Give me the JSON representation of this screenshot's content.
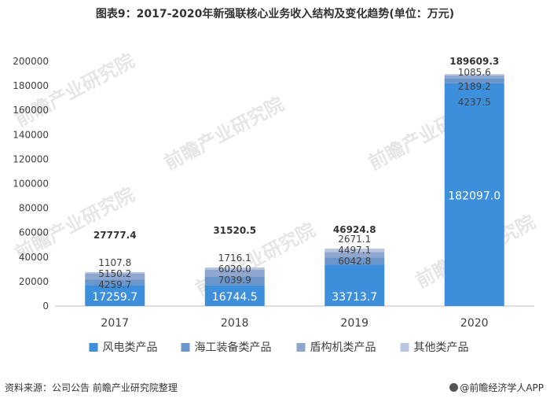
{
  "title": "图表9：2017-2020年新强联核心业务收入结构及变化趋势(单位：万元)",
  "source": "资料来源：公司公告 前瞻产业研究院整理",
  "brand": "@前瞻经济学人APP",
  "watermark": "前瞻产业研究院",
  "colors": {
    "series": [
      "#3e8fdb",
      "#6b96cc",
      "#8fa7cf",
      "#b9c6e2"
    ],
    "axis": "#bfbfbf",
    "text": "#404040"
  },
  "chart_data": {
    "type": "bar",
    "stacked": true,
    "categories": [
      "2017",
      "2018",
      "2019",
      "2020"
    ],
    "series": [
      {
        "name": "风电类产品",
        "values": [
          17259.7,
          16744.5,
          33713.7,
          182097.0
        ],
        "labels": [
          "17259.7",
          "16744.5",
          "33713.7",
          "182097.0"
        ]
      },
      {
        "name": "海工装备类产品",
        "values": [
          4259.7,
          7039.9,
          6042.8,
          4237.5
        ],
        "labels": [
          "4259.7",
          "7039.9",
          "6042.8",
          "4237.5"
        ]
      },
      {
        "name": "盾构机类产品",
        "values": [
          5150.2,
          6020.0,
          4497.1,
          2189.2
        ],
        "labels": [
          "5150.2",
          "6020.0",
          "4497.1",
          "2189.2"
        ]
      },
      {
        "name": "其他类产品",
        "values": [
          1107.8,
          1716.1,
          2671.1,
          1085.6
        ],
        "labels": [
          "1107.8",
          "1716.1",
          "2671.1",
          "1085.6"
        ]
      }
    ],
    "totals": [
      "27777.4",
      "31520.5",
      "46924.8",
      "189609.3"
    ],
    "ylim": [
      0,
      200000
    ],
    "yticks": [
      "0",
      "20000",
      "40000",
      "60000",
      "80000",
      "100000",
      "120000",
      "140000",
      "160000",
      "180000",
      "200000"
    ],
    "legend_position": "bottom",
    "grid": false
  }
}
